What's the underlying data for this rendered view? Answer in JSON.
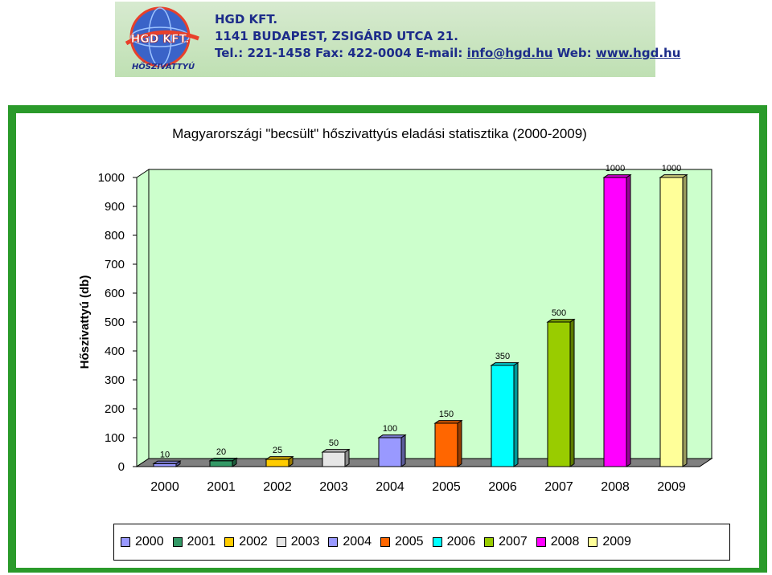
{
  "header": {
    "logo_text": "HGD KFT.",
    "logo_subtext": "HŐSZIVATTYÚ",
    "company_name": "HGD KFT.",
    "address": "1141 BUDAPEST, ZSIGÁRD UTCA 21.",
    "contact_prefix": "Tel.: 221-1458 Fax: 422-0004 E-mail: ",
    "email": "info@hgd.hu",
    "web_prefix": " Web: ",
    "web": "www.hgd.hu"
  },
  "chart_data": {
    "type": "bar",
    "title": "Magyarországi \"becsült\" hőszivattyús eladási statisztika (2000-2009)",
    "ylabel": "Hőszivattyú (db)",
    "xlabel": "",
    "categories": [
      "2000",
      "2001",
      "2002",
      "2003",
      "2004",
      "2005",
      "2006",
      "2007",
      "2008",
      "2009"
    ],
    "values": [
      10,
      20,
      25,
      50,
      100,
      150,
      350,
      500,
      1000,
      1000
    ],
    "ylim": [
      0,
      1000
    ],
    "yticks": [
      0,
      100,
      200,
      300,
      400,
      500,
      600,
      700,
      800,
      900,
      1000
    ],
    "colors": [
      "#9999ff",
      "#339966",
      "#ffcc00",
      "#e6e6e6",
      "#9999ff",
      "#ff6600",
      "#00ffff",
      "#99cc00",
      "#ff00ff",
      "#ffff99"
    ],
    "wall_color": "#ccffcc",
    "floor_color": "#808080",
    "grid": false,
    "legend_position": "bottom",
    "three_d": true
  }
}
